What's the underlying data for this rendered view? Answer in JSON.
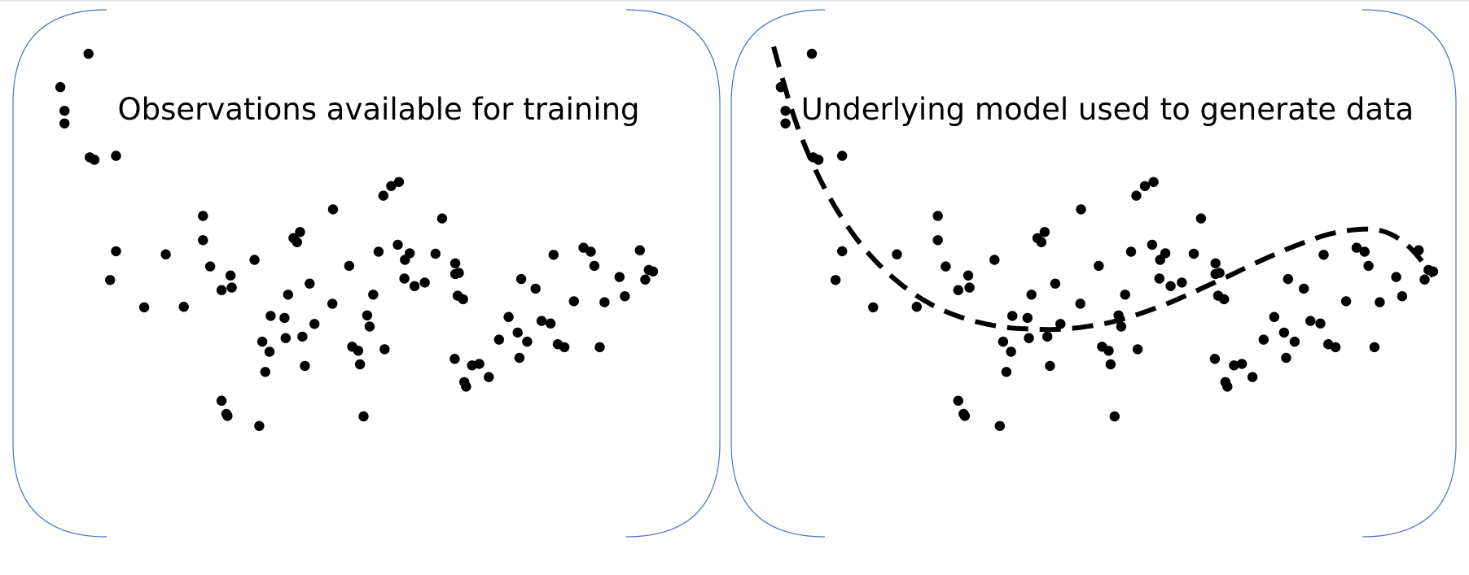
{
  "panels": [
    {
      "title": "Observations available for training",
      "show_curve": false
    },
    {
      "title": "Underlying model used to generate data",
      "show_curve": true
    }
  ],
  "colors": {
    "frame": "#4a72c4",
    "points": "#000000",
    "curve": "#000000",
    "background": "#ffffff"
  },
  "chart_data": {
    "type": "scatter",
    "grid": false,
    "axes_visible": false,
    "xlim": [
      0,
      100
    ],
    "ylim": [
      0,
      100
    ],
    "points": [
      {
        "x": 1.1,
        "y": 90.0
      },
      {
        "x": 1.8,
        "y": 82.8
      },
      {
        "x": 1.8,
        "y": 85.3
      },
      {
        "x": 5.8,
        "y": 96.6
      },
      {
        "x": 6.0,
        "y": 76.1
      },
      {
        "x": 6.8,
        "y": 75.6
      },
      {
        "x": 9.4,
        "y": 51.8
      },
      {
        "x": 10.4,
        "y": 76.4
      },
      {
        "x": 10.4,
        "y": 57.5
      },
      {
        "x": 15.1,
        "y": 46.4
      },
      {
        "x": 18.7,
        "y": 56.9
      },
      {
        "x": 21.7,
        "y": 46.5
      },
      {
        "x": 24.9,
        "y": 59.7
      },
      {
        "x": 24.9,
        "y": 64.5
      },
      {
        "x": 26.1,
        "y": 54.5
      },
      {
        "x": 28.0,
        "y": 49.8
      },
      {
        "x": 28.0,
        "y": 27.9
      },
      {
        "x": 28.8,
        "y": 25.3
      },
      {
        "x": 29.0,
        "y": 24.9
      },
      {
        "x": 29.5,
        "y": 52.7
      },
      {
        "x": 29.7,
        "y": 50.3
      },
      {
        "x": 33.5,
        "y": 55.8
      },
      {
        "x": 34.3,
        "y": 22.9
      },
      {
        "x": 34.8,
        "y": 39.6
      },
      {
        "x": 35.3,
        "y": 33.6
      },
      {
        "x": 36.0,
        "y": 37.6
      },
      {
        "x": 36.2,
        "y": 44.7
      },
      {
        "x": 38.5,
        "y": 44.3
      },
      {
        "x": 38.7,
        "y": 40.3
      },
      {
        "x": 39.1,
        "y": 48.9
      },
      {
        "x": 40.0,
        "y": 60.1
      },
      {
        "x": 40.6,
        "y": 59.3
      },
      {
        "x": 41.1,
        "y": 61.3
      },
      {
        "x": 41.5,
        "y": 40.6
      },
      {
        "x": 41.9,
        "y": 34.8
      },
      {
        "x": 42.7,
        "y": 51.1
      },
      {
        "x": 43.5,
        "y": 43.1
      },
      {
        "x": 46.5,
        "y": 47.1
      },
      {
        "x": 46.6,
        "y": 65.8
      },
      {
        "x": 49.3,
        "y": 54.6
      },
      {
        "x": 49.8,
        "y": 38.6
      },
      {
        "x": 50.8,
        "y": 37.8
      },
      {
        "x": 51.1,
        "y": 35.1
      },
      {
        "x": 51.7,
        "y": 24.8
      },
      {
        "x": 52.3,
        "y": 44.8
      },
      {
        "x": 52.7,
        "y": 42.6
      },
      {
        "x": 53.3,
        "y": 48.9
      },
      {
        "x": 54.2,
        "y": 57.4
      },
      {
        "x": 55.0,
        "y": 68.5
      },
      {
        "x": 55.2,
        "y": 38.1
      },
      {
        "x": 56.3,
        "y": 70.4
      },
      {
        "x": 57.4,
        "y": 58.8
      },
      {
        "x": 57.6,
        "y": 71.2
      },
      {
        "x": 58.5,
        "y": 52.1
      },
      {
        "x": 58.6,
        "y": 55.8
      },
      {
        "x": 59.4,
        "y": 57.1
      },
      {
        "x": 60.2,
        "y": 50.6
      },
      {
        "x": 61.9,
        "y": 51.3
      },
      {
        "x": 63.7,
        "y": 57.0
      },
      {
        "x": 64.8,
        "y": 64.0
      },
      {
        "x": 66.9,
        "y": 36.2
      },
      {
        "x": 67.0,
        "y": 55.1
      },
      {
        "x": 67.0,
        "y": 53.0
      },
      {
        "x": 67.4,
        "y": 48.7
      },
      {
        "x": 67.6,
        "y": 53.2
      },
      {
        "x": 68.3,
        "y": 48.0
      },
      {
        "x": 68.5,
        "y": 31.6
      },
      {
        "x": 68.8,
        "y": 30.7
      },
      {
        "x": 69.8,
        "y": 34.9
      },
      {
        "x": 71.0,
        "y": 35.2
      },
      {
        "x": 72.6,
        "y": 32.6
      },
      {
        "x": 74.3,
        "y": 40.0
      },
      {
        "x": 75.9,
        "y": 44.5
      },
      {
        "x": 77.4,
        "y": 41.4
      },
      {
        "x": 77.7,
        "y": 36.4
      },
      {
        "x": 78.0,
        "y": 52.0
      },
      {
        "x": 79.0,
        "y": 39.6
      },
      {
        "x": 80.4,
        "y": 50.1
      },
      {
        "x": 81.4,
        "y": 43.7
      },
      {
        "x": 82.9,
        "y": 43.2
      },
      {
        "x": 83.4,
        "y": 56.8
      },
      {
        "x": 84.1,
        "y": 39.1
      },
      {
        "x": 85.2,
        "y": 38.5
      },
      {
        "x": 86.8,
        "y": 47.6
      },
      {
        "x": 88.4,
        "y": 58.2
      },
      {
        "x": 89.6,
        "y": 57.4
      },
      {
        "x": 90.2,
        "y": 54.6
      },
      {
        "x": 91.1,
        "y": 38.5
      },
      {
        "x": 91.9,
        "y": 47.4
      },
      {
        "x": 94.4,
        "y": 52.4
      },
      {
        "x": 95.3,
        "y": 48.6
      },
      {
        "x": 97.8,
        "y": 57.7
      },
      {
        "x": 98.7,
        "y": 51.9
      },
      {
        "x": 99.3,
        "y": 53.8
      },
      {
        "x": 100.0,
        "y": 53.5
      }
    ],
    "model_curve": [
      {
        "x": 0.0,
        "y": 98.0
      },
      {
        "x": 3.0,
        "y": 84.5
      },
      {
        "x": 6.0,
        "y": 74.6
      },
      {
        "x": 9.0,
        "y": 67.0
      },
      {
        "x": 12.0,
        "y": 61.0
      },
      {
        "x": 15.0,
        "y": 56.2
      },
      {
        "x": 18.0,
        "y": 52.4
      },
      {
        "x": 21.0,
        "y": 49.3
      },
      {
        "x": 24.0,
        "y": 46.9
      },
      {
        "x": 27.0,
        "y": 45.1
      },
      {
        "x": 30.0,
        "y": 43.8
      },
      {
        "x": 33.0,
        "y": 42.9
      },
      {
        "x": 36.0,
        "y": 42.3
      },
      {
        "x": 39.0,
        "y": 42.1
      },
      {
        "x": 42.0,
        "y": 42.0
      },
      {
        "x": 45.0,
        "y": 42.2
      },
      {
        "x": 48.0,
        "y": 42.7
      },
      {
        "x": 51.0,
        "y": 43.4
      },
      {
        "x": 54.0,
        "y": 44.5
      },
      {
        "x": 57.0,
        "y": 45.8
      },
      {
        "x": 60.0,
        "y": 47.3
      },
      {
        "x": 63.0,
        "y": 49.0
      },
      {
        "x": 66.0,
        "y": 50.8
      },
      {
        "x": 69.0,
        "y": 52.6
      },
      {
        "x": 72.0,
        "y": 54.5
      },
      {
        "x": 75.0,
        "y": 56.3
      },
      {
        "x": 78.0,
        "y": 58.0
      },
      {
        "x": 81.0,
        "y": 59.5
      },
      {
        "x": 84.0,
        "y": 60.8
      },
      {
        "x": 87.0,
        "y": 61.6
      },
      {
        "x": 90.0,
        "y": 61.9
      },
      {
        "x": 92.0,
        "y": 61.6
      },
      {
        "x": 94.0,
        "y": 60.6
      },
      {
        "x": 96.0,
        "y": 58.8
      },
      {
        "x": 98.0,
        "y": 56.0
      },
      {
        "x": 100.0,
        "y": 52.5
      }
    ]
  }
}
